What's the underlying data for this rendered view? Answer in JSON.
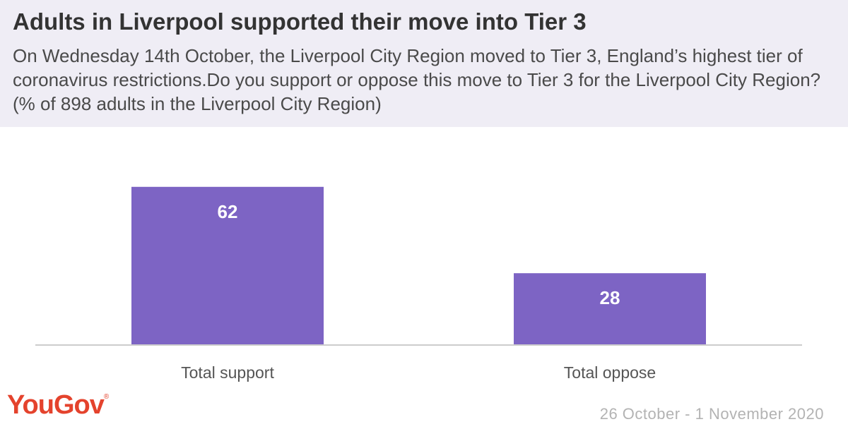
{
  "header": {
    "title": "Adults in Liverpool supported their move into Tier 3",
    "subtitle": "On Wednesday 14th October, the Liverpool City Region moved to Tier 3, England’s highest tier of coronavirus restrictions.Do you support or oppose this move to Tier 3 for the Liverpool City Region? (% of 898 adults in the Liverpool City Region)"
  },
  "chart_data": {
    "type": "bar",
    "categories": [
      "Total support",
      "Total oppose"
    ],
    "values": [
      62,
      28
    ],
    "ylim": [
      0,
      70
    ],
    "bar_color": "#7d64c4",
    "label_color": "#ffffff",
    "axis_color": "#cccccc",
    "grid": false
  },
  "footer": {
    "logo": "YouGov",
    "logo_mark": "®",
    "date": "26 October - 1 November 2020"
  },
  "colors": {
    "header_bg": "#efedf5",
    "logo": "#e4432d"
  }
}
